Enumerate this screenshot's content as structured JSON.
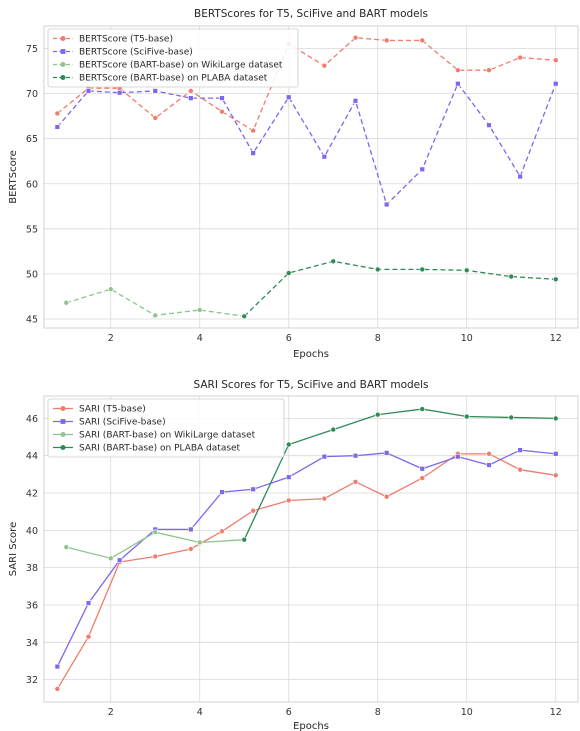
{
  "chart_data": [
    {
      "type": "line",
      "title": "BERTScores for T5, SciFive and BART models",
      "xlabel": "Epochs",
      "ylabel": "BERTScore",
      "xlim": [
        0.5,
        12.5
      ],
      "ylim": [
        44,
        77.5
      ],
      "xticks": [
        2,
        4,
        6,
        8,
        10,
        12
      ],
      "yticks": [
        45,
        50,
        55,
        60,
        65,
        70,
        75
      ],
      "grid": true,
      "legend_position": "top-left",
      "series": [
        {
          "name": "BERTScore (T5-base)",
          "color": "#f07b6e",
          "marker": "circle",
          "dashed": true,
          "x": [
            0.8,
            1.5,
            2.2,
            3.0,
            3.8,
            4.5,
            5.2,
            6.0,
            6.8,
            7.5,
            8.2,
            9.0,
            9.8,
            10.5,
            11.2,
            12.0
          ],
          "y": [
            67.8,
            70.6,
            70.6,
            67.3,
            70.3,
            68.0,
            65.9,
            75.5,
            73.1,
            76.2,
            75.9,
            75.9,
            72.6,
            72.6,
            74.0,
            73.7
          ]
        },
        {
          "name": "BERTScore (SciFive-base)",
          "color": "#7b68ee",
          "marker": "square",
          "dashed": true,
          "x": [
            0.8,
            1.5,
            2.2,
            3.0,
            3.8,
            4.5,
            5.2,
            6.0,
            6.8,
            7.5,
            8.2,
            9.0,
            9.8,
            10.5,
            11.2,
            12.0
          ],
          "y": [
            66.3,
            70.3,
            70.1,
            70.3,
            69.5,
            69.5,
            63.4,
            69.6,
            63.0,
            69.2,
            57.7,
            61.6,
            71.1,
            66.5,
            60.8,
            71.1
          ]
        },
        {
          "name": "BERTScore (BART-base) on WikiLarge dataset",
          "color": "#8fc48f",
          "marker": "circle",
          "dashed": true,
          "x": [
            1,
            2,
            3,
            4,
            5
          ],
          "y": [
            46.8,
            48.3,
            45.4,
            46.0,
            45.3
          ]
        },
        {
          "name": "BERTScore (BART-base) on PLABA dataset",
          "color": "#2e8b57",
          "marker": "circle",
          "dashed": true,
          "x": [
            5,
            6,
            7,
            8,
            9,
            10,
            11,
            12
          ],
          "y": [
            45.3,
            50.1,
            51.4,
            50.5,
            50.5,
            50.4,
            49.7,
            49.4
          ]
        }
      ]
    },
    {
      "type": "line",
      "title": "SARI Scores for T5, SciFive and BART models",
      "xlabel": "Epochs",
      "ylabel": "SARI Score",
      "xlim": [
        0.5,
        12.5
      ],
      "ylim": [
        30.8,
        47.2
      ],
      "xticks": [
        2,
        4,
        6,
        8,
        10,
        12
      ],
      "yticks": [
        32,
        34,
        36,
        38,
        40,
        42,
        44,
        46
      ],
      "grid": true,
      "legend_position": "top-left",
      "series": [
        {
          "name": "SARI (T5-base)",
          "color": "#f07b6e",
          "marker": "circle",
          "dashed": false,
          "x": [
            0.8,
            1.5,
            2.2,
            3.0,
            3.8,
            4.5,
            5.2,
            6.0,
            6.8,
            7.5,
            8.2,
            9.0,
            9.8,
            10.5,
            11.2,
            12.0
          ],
          "y": [
            31.5,
            34.3,
            38.3,
            38.6,
            39.0,
            39.95,
            41.05,
            41.6,
            41.7,
            42.6,
            41.8,
            42.8,
            44.1,
            44.1,
            43.25,
            42.95
          ]
        },
        {
          "name": "SARI (SciFive-base)",
          "color": "#7b68ee",
          "marker": "square",
          "dashed": false,
          "x": [
            0.8,
            1.5,
            2.2,
            3.0,
            3.8,
            4.5,
            5.2,
            6.0,
            6.8,
            7.5,
            8.2,
            9.0,
            9.8,
            10.5,
            11.2,
            12.0
          ],
          "y": [
            32.7,
            36.1,
            38.4,
            40.05,
            40.05,
            42.05,
            42.2,
            42.85,
            43.95,
            44.0,
            44.15,
            43.3,
            43.95,
            43.5,
            44.3,
            44.1
          ]
        },
        {
          "name": "SARI (BART-base) on WikiLarge dataset",
          "color": "#8fc48f",
          "marker": "circle",
          "dashed": false,
          "x": [
            1,
            2,
            3,
            4,
            5
          ],
          "y": [
            39.1,
            38.5,
            39.9,
            39.35,
            39.5
          ]
        },
        {
          "name": "SARI (BART-base) on PLABA dataset",
          "color": "#2e8b57",
          "marker": "circle",
          "dashed": false,
          "x": [
            5,
            6,
            7,
            8,
            9,
            10,
            11,
            12
          ],
          "y": [
            39.5,
            44.6,
            45.4,
            46.2,
            46.5,
            46.1,
            46.05,
            46.0
          ]
        }
      ]
    }
  ]
}
